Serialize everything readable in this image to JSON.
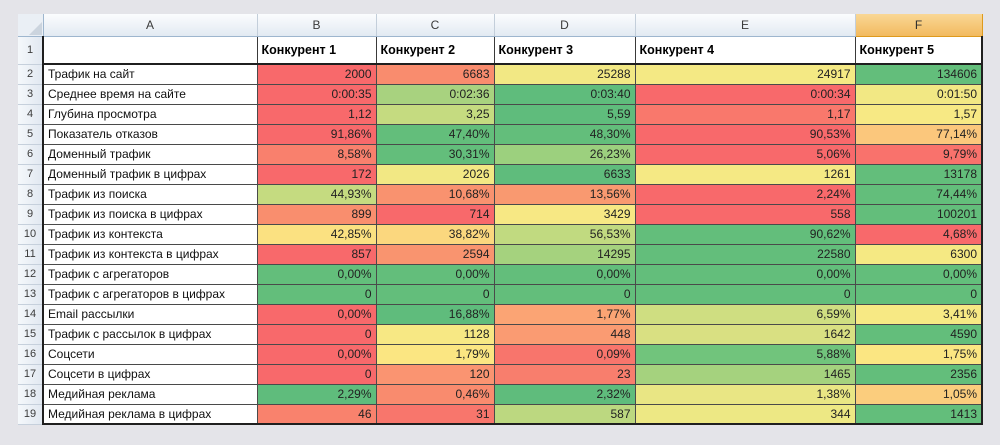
{
  "grid": {
    "column_letters": [
      "A",
      "B",
      "C",
      "D",
      "E",
      "F"
    ],
    "selected_column": "F",
    "row1": {
      "number": "1",
      "competitor_headers": [
        "Конкурент 1",
        "Конкурент 2",
        "Конкурент 3",
        "Конкурент 4",
        "Конкурент 5"
      ]
    },
    "rows": [
      {
        "number": "2",
        "label": "Трафик на сайт",
        "values": [
          "2000",
          "6683",
          "25288",
          "24917",
          "134606"
        ],
        "colors": [
          "#F8696B",
          "#F98C6E",
          "#F2E884",
          "#F4E984",
          "#63BE7B"
        ]
      },
      {
        "number": "3",
        "label": "Среднее время на сайте",
        "values": [
          "0:00:35",
          "0:02:36",
          "0:03:40",
          "0:00:34",
          "0:01:50"
        ],
        "colors": [
          "#F8696B",
          "#A8D27F",
          "#5FBC7C",
          "#F8696B",
          "#F2E884"
        ]
      },
      {
        "number": "4",
        "label": "Глубина просмотра",
        "values": [
          "1,12",
          "3,25",
          "5,59",
          "1,17",
          "1,57"
        ],
        "colors": [
          "#F8696B",
          "#C5DB80",
          "#5FBC7C",
          "#F9786C",
          "#F7E984"
        ]
      },
      {
        "number": "5",
        "label": "Показатель отказов",
        "values": [
          "91,86%",
          "47,40%",
          "48,30%",
          "90,53%",
          "77,14%"
        ],
        "colors": [
          "#F8696B",
          "#63BE7B",
          "#63BE7B",
          "#F8696B",
          "#FBC77C"
        ]
      },
      {
        "number": "6",
        "label": "Доменный трафик",
        "values": [
          "8,58%",
          "30,31%",
          "26,23%",
          "5,06%",
          "9,79%"
        ],
        "colors": [
          "#F9806D",
          "#63BE7B",
          "#9CD07E",
          "#F8696B",
          "#F9726C"
        ]
      },
      {
        "number": "7",
        "label": "Доменный трафик в цифрах",
        "values": [
          "172",
          "2026",
          "6633",
          "1261",
          "13178"
        ],
        "colors": [
          "#F8696B",
          "#F2E884",
          "#5FBC7C",
          "#F5E984",
          "#63BE7B"
        ]
      },
      {
        "number": "8",
        "label": "Трафик из поиска",
        "values": [
          "44,93%",
          "10,68%",
          "13,56%",
          "2,24%",
          "74,44%"
        ],
        "colors": [
          "#C5DB80",
          "#F9926F",
          "#F99970",
          "#F8696B",
          "#63BE7B"
        ]
      },
      {
        "number": "9",
        "label": "Трафик из поиска в цифрах",
        "values": [
          "899",
          "714",
          "3429",
          "558",
          "100201"
        ],
        "colors": [
          "#F98E6E",
          "#F8696B",
          "#F7E884",
          "#F8696B",
          "#63BE7B"
        ]
      },
      {
        "number": "10",
        "label": "Трафик из контекста",
        "values": [
          "42,85%",
          "38,82%",
          "56,53%",
          "90,62%",
          "4,68%"
        ],
        "colors": [
          "#FBE181",
          "#FBD77E",
          "#C1DA80",
          "#63BE7B",
          "#F8696B"
        ]
      },
      {
        "number": "11",
        "label": "Трафик из контекста в цифрах",
        "values": [
          "857",
          "2594",
          "14295",
          "22580",
          "6300"
        ],
        "colors": [
          "#F8696B",
          "#F9946F",
          "#A5D27E",
          "#63BE7B",
          "#F5E983"
        ]
      },
      {
        "number": "12",
        "label": "Трафик с агрегаторов",
        "values": [
          "0,00%",
          "0,00%",
          "0,00%",
          "0,00%",
          "0,00%"
        ],
        "colors": [
          "#63BE7B",
          "#63BE7B",
          "#63BE7B",
          "#63BE7B",
          "#63BE7B"
        ]
      },
      {
        "number": "13",
        "label": "Трафик с агрегаторов в цифрах",
        "values": [
          "0",
          "0",
          "0",
          "0",
          "0"
        ],
        "colors": [
          "#63BE7B",
          "#63BE7B",
          "#63BE7B",
          "#63BE7B",
          "#63BE7B"
        ]
      },
      {
        "number": "14",
        "label": "Email рассылки",
        "values": [
          "0,00%",
          "16,88%",
          "1,77%",
          "6,59%",
          "3,41%"
        ],
        "colors": [
          "#F8696B",
          "#5FBC7C",
          "#FBA474",
          "#CFDE81",
          "#F7E984"
        ]
      },
      {
        "number": "15",
        "label": "Трафик с рассылок в цифрах",
        "values": [
          "0",
          "1128",
          "448",
          "1642",
          "4590"
        ],
        "colors": [
          "#F8696B",
          "#F7E884",
          "#FA9B72",
          "#D9E082",
          "#63BE7B"
        ]
      },
      {
        "number": "16",
        "label": "Соцсети",
        "values": [
          "0,00%",
          "1,79%",
          "0,09%",
          "5,88%",
          "1,75%"
        ],
        "colors": [
          "#F8696B",
          "#FBE682",
          "#F8756C",
          "#71C47C",
          "#FBE682"
        ]
      },
      {
        "number": "17",
        "label": "Соцсети в цифрах",
        "values": [
          "0",
          "120",
          "23",
          "1465",
          "2356"
        ],
        "colors": [
          "#F8696B",
          "#FA9471",
          "#F87E6D",
          "#A5D27E",
          "#63BE7B"
        ]
      },
      {
        "number": "18",
        "label": "Медийная реклама",
        "values": [
          "2,29%",
          "0,46%",
          "2,32%",
          "1,38%",
          "1,05%"
        ],
        "colors": [
          "#5FBC7C",
          "#F98B6E",
          "#5FBC7C",
          "#E9E684",
          "#FBCD7D"
        ]
      },
      {
        "number": "19",
        "label": "Медийная реклама в цифрах",
        "values": [
          "46",
          "31",
          "587",
          "344",
          "1413"
        ],
        "colors": [
          "#F9826D",
          "#F8766C",
          "#BCD880",
          "#EDE884",
          "#63BE7B"
        ]
      }
    ]
  },
  "palette": {
    "scale_min": "#F8696B",
    "scale_mid": "#FFEB84",
    "scale_max": "#63BE7B",
    "selected_header_fill": "#F5C26B",
    "page_background": "#E4E4E9"
  }
}
